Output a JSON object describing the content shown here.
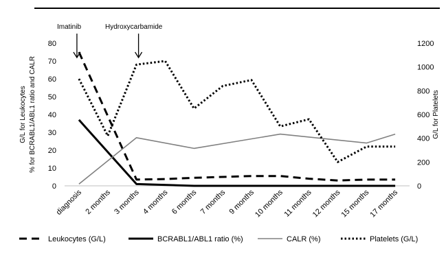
{
  "chart_data": {
    "type": "line",
    "categories": [
      "diagnosis",
      "2 months",
      "3 months",
      "4 months",
      "6 months",
      "7 months",
      "9 months",
      "10 months",
      "11 months",
      "12 months",
      "15 months",
      "17 months"
    ],
    "y_left": {
      "label_lines": [
        "G/L for Leukocytes",
        "% for BCRABL1/ABL1 ratio and CALR"
      ],
      "min": 0,
      "max": 80,
      "ticks": [
        0,
        10,
        20,
        30,
        40,
        50,
        60,
        70,
        80
      ]
    },
    "y_right": {
      "label": "G/L for Platelets",
      "min": 0,
      "max": 1200,
      "ticks": [
        0,
        200,
        400,
        600,
        800,
        1000,
        1200
      ]
    },
    "series": [
      {
        "name": "Leukocytes (G/L)",
        "axis": "left",
        "style": "dashed",
        "color": "#000000",
        "points": [
          [
            0,
            75
          ],
          [
            2,
            3.5
          ],
          [
            3,
            3.8
          ],
          [
            4,
            4.5
          ],
          [
            6,
            5.5
          ],
          [
            7,
            5.5
          ],
          [
            8,
            4
          ],
          [
            9,
            3
          ],
          [
            10,
            3.5
          ],
          [
            11,
            3.5
          ]
        ]
      },
      {
        "name": "BCRABL1/ABL1 ratio (%)",
        "axis": "left",
        "style": "solid-thick",
        "color": "#000000",
        "points": [
          [
            0,
            37
          ],
          [
            2,
            1
          ],
          [
            4,
            0
          ],
          [
            11,
            0
          ]
        ]
      },
      {
        "name": "CALR (%)",
        "axis": "left",
        "style": "solid-thin",
        "color": "#808080",
        "points": [
          [
            0,
            1
          ],
          [
            2,
            27
          ],
          [
            4,
            21
          ],
          [
            7,
            29
          ],
          [
            10,
            24
          ],
          [
            11,
            29
          ]
        ]
      },
      {
        "name": "Platelets (G/L)",
        "axis": "right",
        "style": "dotted",
        "color": "#000000",
        "points": [
          [
            0,
            900
          ],
          [
            1,
            420
          ],
          [
            2,
            1020
          ],
          [
            3,
            1050
          ],
          [
            4,
            650
          ],
          [
            5,
            840
          ],
          [
            6,
            890
          ],
          [
            7,
            500
          ],
          [
            8,
            560
          ],
          [
            9,
            200
          ],
          [
            10,
            330
          ],
          [
            11,
            330
          ]
        ]
      }
    ],
    "annotations": [
      {
        "text": "Imatinib",
        "category_index": 0
      },
      {
        "text": "Hydroxycarbamide",
        "category_index": 2
      }
    ],
    "legend_position": "bottom",
    "grid": false
  }
}
